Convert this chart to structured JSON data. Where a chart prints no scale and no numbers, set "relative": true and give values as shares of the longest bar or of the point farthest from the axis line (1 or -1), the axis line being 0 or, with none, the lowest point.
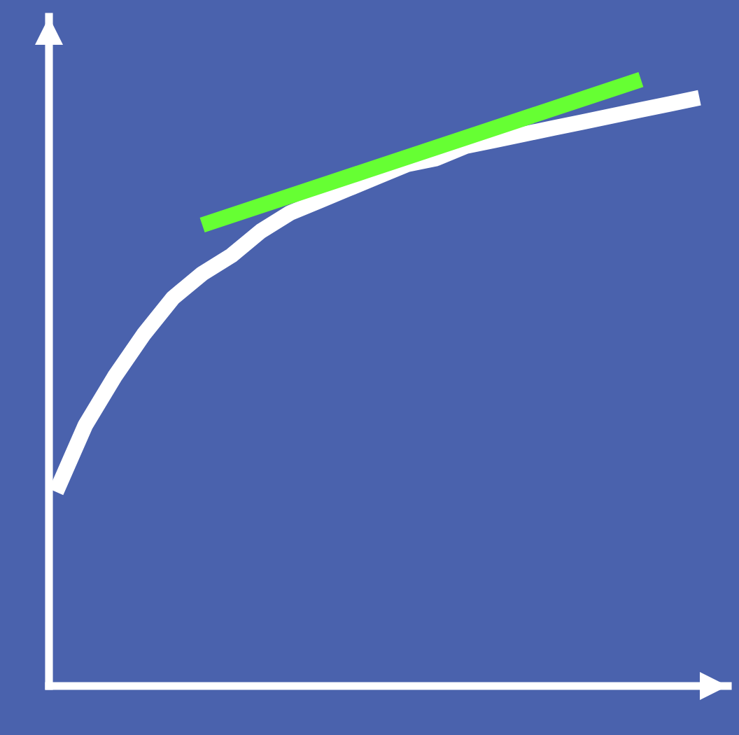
{
  "chart_data": {
    "type": "line",
    "relative": true,
    "categories": [
      null,
      null,
      null,
      null,
      null,
      null,
      null,
      null,
      null,
      null,
      null,
      null,
      null,
      null,
      null,
      null,
      null,
      null,
      null,
      null,
      null,
      null,
      null
    ],
    "series": [
      {
        "color": "#ffffff",
        "values": [
          0.32,
          0.43,
          0.51,
          0.58,
          0.64,
          0.68,
          0.71,
          0.75,
          0.78,
          0.8,
          0.82,
          0.84,
          0.86,
          0.87,
          0.89,
          0.9,
          0.91,
          0.92,
          0.93,
          0.94,
          0.95,
          0.96,
          0.97
        ]
      },
      {
        "color": "#66ff33",
        "values": [
          null,
          null,
          null,
          null,
          null,
          0.76,
          null,
          null,
          null,
          null,
          null,
          null,
          null,
          null,
          null,
          null,
          null,
          null,
          null,
          null,
          1.0,
          null,
          null
        ]
      }
    ],
    "grid": false,
    "legend": false,
    "marker": "none",
    "line_style": "solid"
  }
}
